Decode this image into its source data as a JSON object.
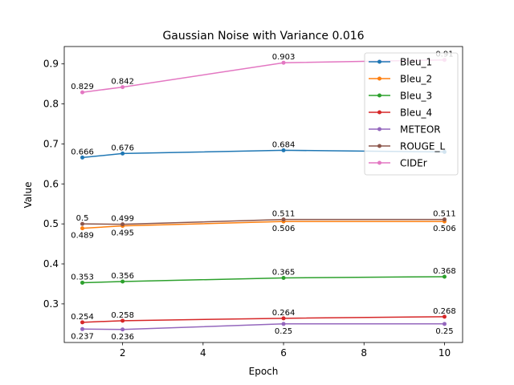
{
  "chart_data": {
    "type": "line",
    "title": "Gaussian Noise with Variance 0.016",
    "xlabel": "Epoch",
    "ylabel": "Value",
    "xlim": [
      0.55,
      10.45
    ],
    "ylim": [
      0.2035,
      0.9435
    ],
    "xticks": [
      2,
      4,
      6,
      8,
      10
    ],
    "yticks": [
      0.3,
      0.4,
      0.5,
      0.6,
      0.7,
      0.8,
      0.9
    ],
    "x": [
      1,
      2,
      6,
      10
    ],
    "legend_position": "upper-right",
    "grid": false,
    "series": [
      {
        "name": "Bleu_1",
        "color": "#1f77b4",
        "values": [
          0.666,
          0.676,
          0.684,
          0.68
        ],
        "labels": [
          "0.666",
          "0.676",
          "0.684",
          ""
        ],
        "label_pos": "above"
      },
      {
        "name": "Bleu_2",
        "color": "#ff7f0e",
        "values": [
          0.489,
          0.495,
          0.506,
          0.506
        ],
        "labels": [
          "0.489",
          "0.495",
          "0.506",
          "0.506"
        ],
        "label_pos": "below"
      },
      {
        "name": "Bleu_3",
        "color": "#2ca02c",
        "values": [
          0.353,
          0.356,
          0.365,
          0.368
        ],
        "labels": [
          "0.353",
          "0.356",
          "0.365",
          "0.368"
        ],
        "label_pos": "above"
      },
      {
        "name": "Bleu_4",
        "color": "#d62728",
        "values": [
          0.254,
          0.258,
          0.264,
          0.268
        ],
        "labels": [
          "0.254",
          "0.258",
          "0.264",
          "0.268"
        ],
        "label_pos": "above"
      },
      {
        "name": "METEOR",
        "color": "#9467bd",
        "values": [
          0.237,
          0.236,
          0.25,
          0.25
        ],
        "labels": [
          "0.237",
          "0.236",
          "0.25",
          "0.25"
        ],
        "label_pos": "below"
      },
      {
        "name": "ROUGE_L",
        "color": "#8c564b",
        "values": [
          0.5,
          0.499,
          0.511,
          0.511
        ],
        "labels": [
          "0.5",
          "0.499",
          "0.511",
          "0.511"
        ],
        "label_pos": "above"
      },
      {
        "name": "CIDEr",
        "color": "#e377c2",
        "values": [
          0.829,
          0.842,
          0.903,
          0.91
        ],
        "labels": [
          "0.829",
          "0.842",
          "0.903",
          "0.91"
        ],
        "label_pos": "above"
      }
    ]
  }
}
